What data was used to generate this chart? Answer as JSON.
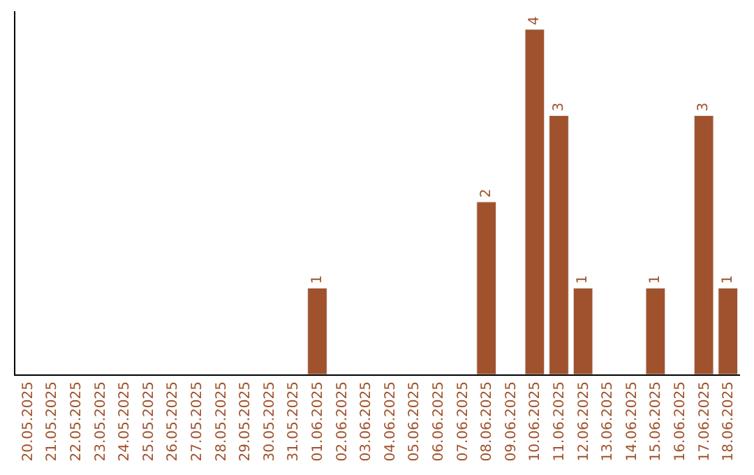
{
  "chart_data": {
    "type": "bar",
    "categories": [
      "20.05.2025",
      "21.05.2025",
      "22.05.2025",
      "23.05.2025",
      "24.05.2025",
      "25.05.2025",
      "26.05.2025",
      "27.05.2025",
      "28.05.2025",
      "29.05.2025",
      "30.05.2025",
      "31.05.2025",
      "01.06.2025",
      "02.06.2025",
      "03.06.2025",
      "04.06.2025",
      "05.06.2025",
      "06.06.2025",
      "07.06.2025",
      "08.06.2025",
      "09.06.2025",
      "10.06.2025",
      "11.06.2025",
      "12.06.2025",
      "13.06.2025",
      "14.06.2025",
      "15.06.2025",
      "16.06.2025",
      "17.06.2025",
      "18.06.2025"
    ],
    "values": [
      null,
      null,
      null,
      null,
      null,
      null,
      null,
      null,
      null,
      null,
      null,
      null,
      1,
      null,
      null,
      null,
      null,
      null,
      null,
      2,
      null,
      4,
      3,
      1,
      null,
      null,
      1,
      null,
      3,
      1
    ],
    "value_labels": [
      null,
      null,
      null,
      null,
      null,
      null,
      null,
      null,
      null,
      null,
      null,
      null,
      "1",
      null,
      null,
      null,
      null,
      null,
      null,
      "2",
      null,
      "4",
      "3",
      "1",
      null,
      null,
      "1",
      null,
      "3",
      "1"
    ],
    "color": "#a0522d",
    "legend": false,
    "tick_labels": "x"
  }
}
